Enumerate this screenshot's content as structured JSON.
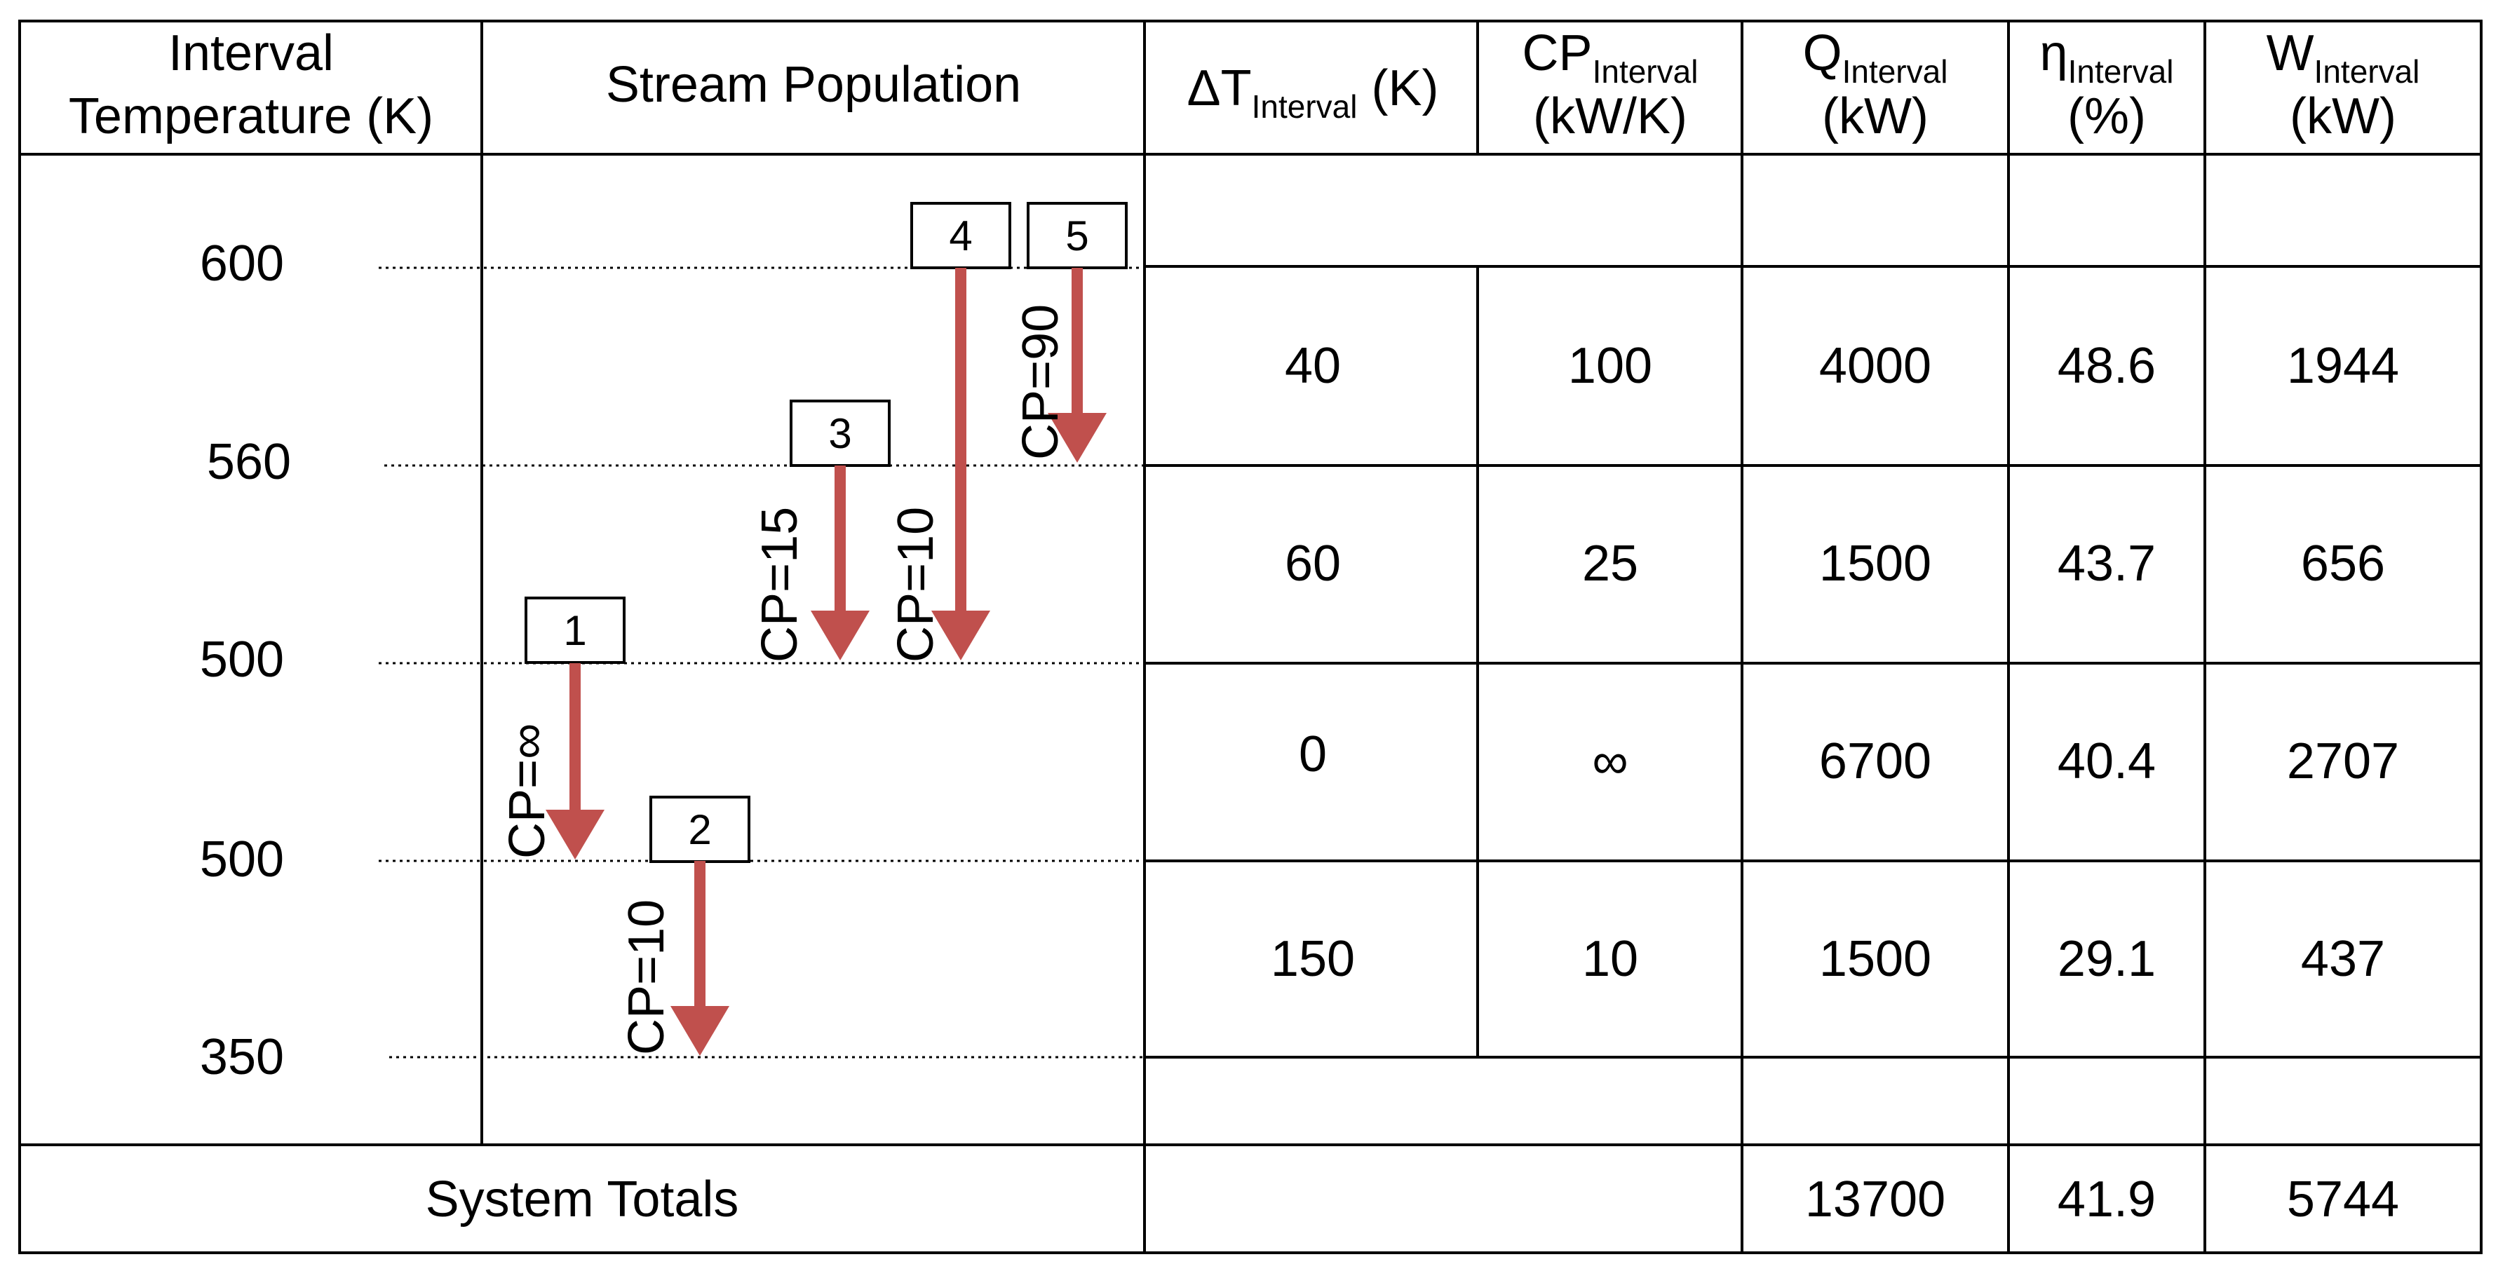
{
  "headers": {
    "interval_temperature": [
      "Interval",
      "Temperature (K)"
    ],
    "stream_population": "Stream Population",
    "delta_t": {
      "main": "ΔT",
      "sub": "Interval",
      "unit": " (K)"
    },
    "cp": {
      "main": "CP",
      "sub": "Interval",
      "unit": "(kW/K)"
    },
    "q": {
      "main": "Q",
      "sub": "Interval",
      "unit": "(kW)"
    },
    "eta": {
      "main": "η",
      "sub": "Interval",
      "unit": "(%)"
    },
    "w": {
      "main": "W",
      "sub": "Interval",
      "unit": "(kW)"
    }
  },
  "temperatures": [
    "600",
    "560",
    "500",
    "500",
    "350"
  ],
  "streams": [
    {
      "number": "1",
      "cp_label": "CP=∞"
    },
    {
      "number": "2",
      "cp_label": "CP=10"
    },
    {
      "number": "3",
      "cp_label": "CP=15"
    },
    {
      "number": "4",
      "cp_label": "CP=10"
    },
    {
      "number": "5",
      "cp_label": "CP=90"
    }
  ],
  "rows": [
    {
      "delta_t": "40",
      "cp": "100",
      "q": "4000",
      "eta": "48.6",
      "w": "1944"
    },
    {
      "delta_t": "60",
      "cp": "25",
      "q": "1500",
      "eta": "43.7",
      "w": "656"
    },
    {
      "delta_t": "0",
      "cp": "∞",
      "q": "6700",
      "eta": "40.4",
      "w": "2707"
    },
    {
      "delta_t": "150",
      "cp": "10",
      "q": "1500",
      "eta": "29.1",
      "w": "437"
    }
  ],
  "totals": {
    "label": "System Totals",
    "q": "13700",
    "eta": "41.9",
    "w": "5744"
  },
  "colors": {
    "arrow": "#C0504D"
  }
}
